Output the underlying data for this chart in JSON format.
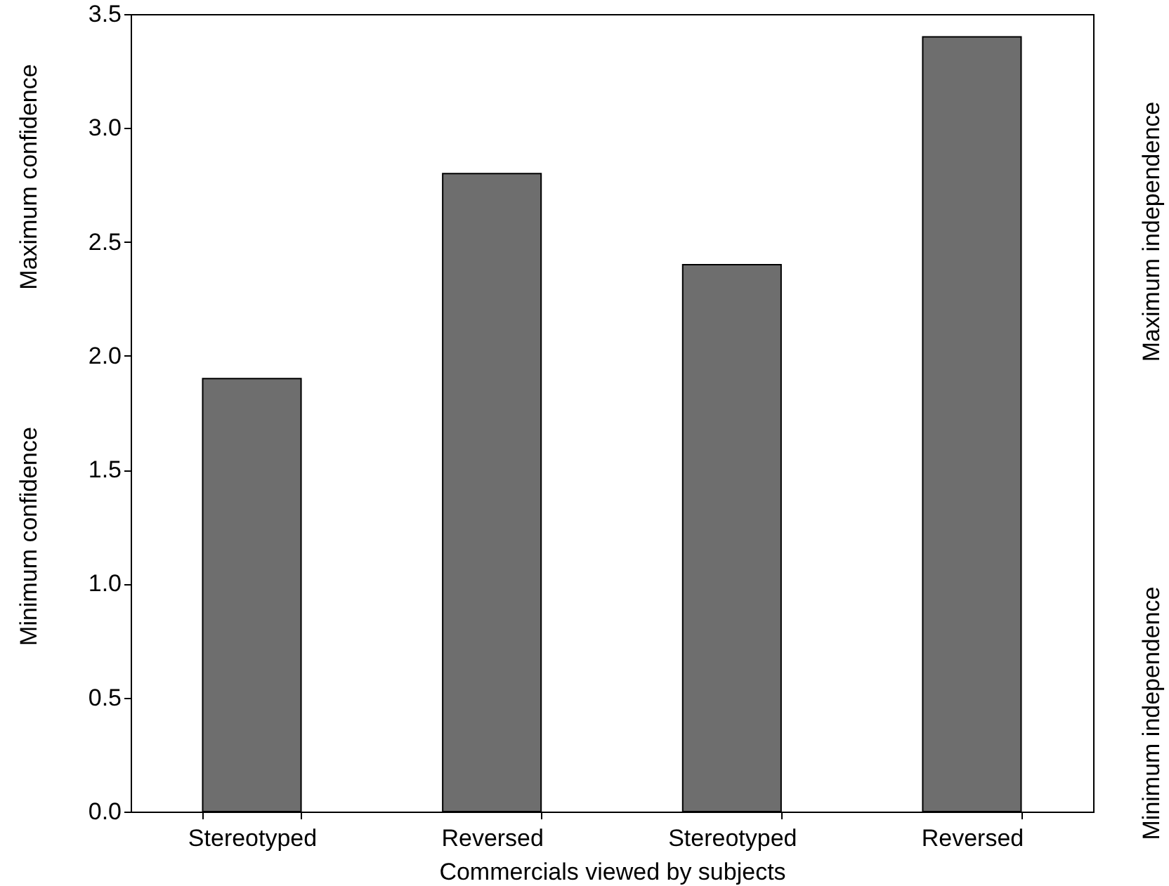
{
  "chart_data": {
    "type": "bar",
    "categories": [
      "Stereotyped",
      "Reversed",
      "Stereotyped",
      "Reversed"
    ],
    "values": [
      1.9,
      2.8,
      2.4,
      3.4
    ],
    "color": "#6e6e6e",
    "xlabel": "Commercials viewed by subjects",
    "annotations": [
      "Minimum confidence",
      "Maximum confidence",
      "Minimum independence",
      "Maximum independence"
    ],
    "ylim": [
      0,
      3.5
    ],
    "yticks": [
      {
        "value": 0,
        "label": "0.0"
      },
      0.5,
      {
        "value": 1,
        "label": "1.0"
      },
      1.5,
      {
        "value": 2,
        "label": "2.0"
      },
      2.5,
      {
        "value": 3,
        "label": "3.0"
      },
      3.5
    ],
    "grid": false
  }
}
